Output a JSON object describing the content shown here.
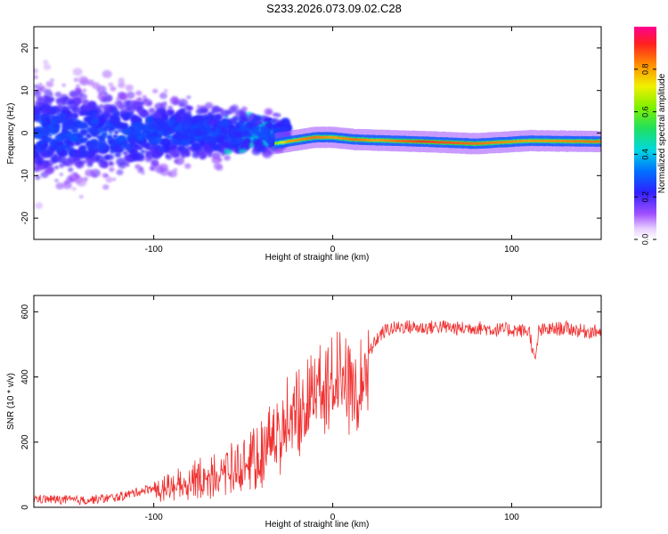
{
  "title": "S233.2026.073.09.02.C28",
  "colors": {
    "snr_line": "#f03030",
    "spec_low": "#9b30ff",
    "spec_mid": "#00d2d2",
    "spec_high": "#e3231d"
  },
  "chart_data": [
    {
      "id": "spectrogram",
      "type": "heatmap",
      "title": "",
      "xlabel": "Height of straight line (km)",
      "ylabel": "Frequency (Hz)",
      "xlim": [
        -167,
        150
      ],
      "ylim": [
        -25,
        25
      ],
      "xticks": [
        -100,
        0,
        100
      ],
      "yticks": [
        -20,
        -10,
        0,
        10,
        20
      ],
      "colorbar": {
        "label": "Normalized spectral amplitude",
        "range": [
          0.0,
          1.0
        ],
        "ticks": [
          0.0,
          0.2,
          0.4,
          0.6,
          0.8
        ]
      },
      "ridge": [
        {
          "x": -55,
          "freq": 1,
          "amp": 0.35
        },
        {
          "x": -40,
          "freq": -3,
          "amp": 0.4
        },
        {
          "x": -25,
          "freq": -2,
          "amp": 0.8
        },
        {
          "x": -10,
          "freq": -1,
          "amp": 0.85
        },
        {
          "x": 0,
          "freq": -1,
          "amp": 0.8
        },
        {
          "x": 12,
          "freq": -1.5,
          "amp": 0.85
        },
        {
          "x": 25,
          "freq": -1.7,
          "amp": 0.8
        },
        {
          "x": 50,
          "freq": -2,
          "amp": 0.9
        },
        {
          "x": 80,
          "freq": -2.5,
          "amp": 0.85
        },
        {
          "x": 110,
          "freq": -1.8,
          "amp": 0.8
        },
        {
          "x": 150,
          "freq": -2,
          "amp": 0.85
        }
      ]
    },
    {
      "id": "snr",
      "type": "line",
      "title": "",
      "xlabel": "Height of straight line (km)",
      "ylabel": "SNR (10 * v/v)",
      "xlim": [
        -167,
        150
      ],
      "ylim": [
        0,
        650
      ],
      "xticks": [
        -100,
        0,
        100
      ],
      "yticks": [
        0,
        200,
        400,
        600
      ],
      "series": [
        {
          "name": "SNR",
          "x": [
            -167,
            -140,
            -120,
            -100,
            -80,
            -60,
            -50,
            -40,
            -35,
            -30,
            -25,
            -20,
            -15,
            -10,
            -5,
            0,
            5,
            10,
            15,
            20,
            25,
            30,
            40,
            50,
            60,
            70,
            80,
            90,
            100,
            110,
            113,
            115,
            120,
            130,
            140,
            150
          ],
          "values": [
            20,
            15,
            25,
            55,
            90,
            120,
            140,
            180,
            230,
            270,
            310,
            330,
            340,
            370,
            390,
            410,
            430,
            370,
            420,
            470,
            520,
            545,
            555,
            550,
            555,
            548,
            552,
            545,
            545,
            540,
            440,
            540,
            545,
            550,
            540,
            540
          ]
        }
      ]
    }
  ]
}
